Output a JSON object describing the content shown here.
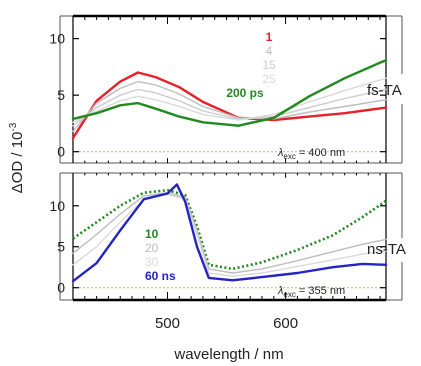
{
  "chart_data": {
    "type": "line",
    "xlabel": "wavelength / nm",
    "ylabel": "ΔOD / 10",
    "ylabel_exponent": "-3",
    "xlim": [
      420,
      685
    ],
    "x_ticks": [
      500,
      600
    ],
    "panels": [
      {
        "label": "fs-TA",
        "ylim": [
          -1,
          12
        ],
        "y_ticks": [
          0,
          5,
          10
        ],
        "annotation": {
          "lambda": "λ",
          "sub": "exc",
          "text": " = 400 nm"
        },
        "series": [
          {
            "name": "1",
            "color": "#e8202a",
            "style": "solid",
            "x": [
              420,
              440,
              460,
              475,
              490,
              510,
              530,
              560,
              590,
              620,
              650,
              685
            ],
            "y": [
              1.2,
              4.5,
              6.2,
              7.0,
              6.6,
              5.7,
              4.4,
              3.0,
              2.8,
              3.1,
              3.4,
              3.9
            ]
          },
          {
            "name": "4",
            "color": "#bdbdbd",
            "style": "solid",
            "x": [
              420,
              440,
              460,
              475,
              490,
              510,
              530,
              560,
              590,
              620,
              650,
              685
            ],
            "y": [
              1.8,
              4.3,
              5.6,
              6.2,
              5.9,
              5.1,
              4.0,
              3.0,
              2.9,
              3.5,
              4.0,
              4.6
            ]
          },
          {
            "name": "15",
            "color": "#cccccc",
            "style": "solid",
            "x": [
              420,
              440,
              460,
              475,
              490,
              510,
              530,
              560,
              590,
              620,
              650,
              685
            ],
            "y": [
              2.3,
              3.9,
              5.0,
              5.5,
              5.2,
              4.5,
              3.6,
              2.9,
              3.1,
              3.9,
              4.7,
              5.5
            ]
          },
          {
            "name": "25",
            "color": "#d9d9d9",
            "style": "solid",
            "x": [
              420,
              440,
              460,
              475,
              490,
              510,
              530,
              560,
              590,
              620,
              650,
              685
            ],
            "y": [
              2.6,
              3.6,
              4.5,
              4.9,
              4.6,
              4.0,
              3.3,
              2.8,
              3.3,
              4.4,
              5.4,
              6.5
            ]
          },
          {
            "name": "200 ps",
            "color": "#1f8a1f",
            "style": "solid",
            "x": [
              420,
              440,
              460,
              475,
              490,
              510,
              530,
              560,
              590,
              620,
              650,
              685
            ],
            "y": [
              2.9,
              3.4,
              4.1,
              4.3,
              3.8,
              3.1,
              2.6,
              2.3,
              3.0,
              4.9,
              6.5,
              8.1
            ]
          }
        ]
      },
      {
        "label": "ns-TA",
        "ylim": [
          -1.5,
          14
        ],
        "y_ticks": [
          0,
          5,
          10
        ],
        "annotation": {
          "lambda": "λ",
          "sub": "exc",
          "text": " = 355 nm"
        },
        "series": [
          {
            "name": "10",
            "color": "#1f8a1f",
            "style": "dotted",
            "x": [
              420,
              440,
              460,
              480,
              500,
              515,
              525,
              535,
              555,
              580,
              610,
              640,
              665,
              685
            ],
            "y": [
              6.0,
              8.0,
              10.0,
              11.6,
              11.9,
              11.3,
              7.5,
              2.8,
              2.3,
              3.1,
              4.6,
              6.4,
              8.6,
              10.6
            ]
          },
          {
            "name": "20",
            "color": "#bdbdbd",
            "style": "solid",
            "x": [
              420,
              440,
              460,
              480,
              500,
              515,
              525,
              535,
              555,
              580,
              610,
              640,
              665,
              685
            ],
            "y": [
              4.2,
              6.5,
              9.0,
              11.2,
              11.6,
              11.0,
              7.0,
              2.3,
              1.8,
              2.3,
              3.3,
              4.4,
              5.3,
              5.9
            ]
          },
          {
            "name": "30",
            "color": "#d9d9d9",
            "style": "solid",
            "x": [
              420,
              440,
              460,
              480,
              500,
              515,
              525,
              535,
              555,
              580,
              610,
              640,
              665,
              685
            ],
            "y": [
              2.8,
              5.0,
              8.0,
              10.8,
              11.4,
              10.8,
              6.5,
              1.8,
              1.4,
              1.8,
              2.6,
              3.4,
              4.1,
              4.5
            ]
          },
          {
            "name": "60 ns",
            "color": "#2323c8",
            "style": "solid",
            "x": [
              420,
              440,
              460,
              480,
              500,
              508,
              515,
              525,
              535,
              555,
              580,
              610,
              640,
              665,
              685
            ],
            "y": [
              0.8,
              3.0,
              7.0,
              10.8,
              11.5,
              12.6,
              10.5,
              5.0,
              1.2,
              0.9,
              1.3,
              1.8,
              2.5,
              2.9,
              2.8
            ]
          }
        ]
      }
    ]
  }
}
